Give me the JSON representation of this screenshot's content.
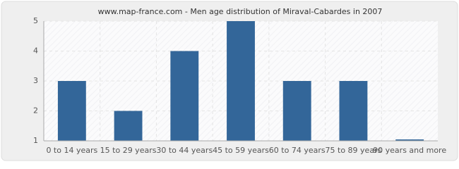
{
  "chart_data": {
    "type": "bar",
    "title": "www.map-france.com - Men age distribution of Miraval-Cabardes in 2007",
    "categories": [
      "0 to 14 years",
      "15 to 29 years",
      "30 to 44 years",
      "45 to 59 years",
      "60 to 74 years",
      "75 to 89 years",
      "90 years and more"
    ],
    "values": [
      3,
      2,
      4,
      5,
      3,
      3,
      1
    ],
    "color": "#336699",
    "ylim": [
      1,
      5
    ],
    "yticks": [
      1,
      2,
      3,
      4,
      5
    ],
    "grid": true
  }
}
